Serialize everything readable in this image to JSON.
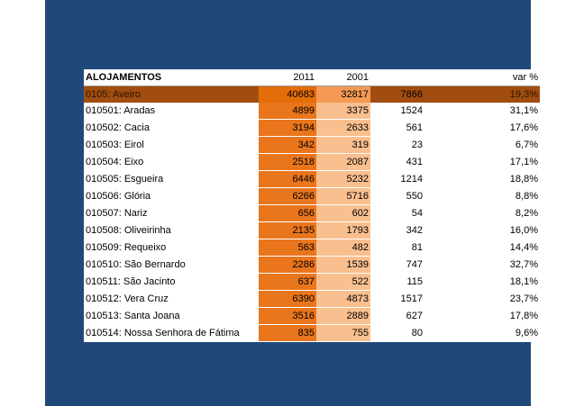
{
  "table": {
    "headers": [
      "ALOJAMENTOS",
      "2011",
      "2001",
      "",
      "var %"
    ],
    "total": {
      "name": "0105: Aveiro",
      "y2011": "40683",
      "y2001": "32817",
      "diff": "7866",
      "var": "19,3%"
    },
    "rows": [
      {
        "name": "010501: Aradas",
        "y2011": "4899",
        "y2001": "3375",
        "diff": "1524",
        "var": "31,1%"
      },
      {
        "name": "010502: Cacia",
        "y2011": "3194",
        "y2001": "2633",
        "diff": "561",
        "var": "17,6%"
      },
      {
        "name": "010503: Eirol",
        "y2011": "342",
        "y2001": "319",
        "diff": "23",
        "var": "6,7%"
      },
      {
        "name": "010504: Eixo",
        "y2011": "2518",
        "y2001": "2087",
        "diff": "431",
        "var": "17,1%"
      },
      {
        "name": "010505: Esgueira",
        "y2011": "6446",
        "y2001": "5232",
        "diff": "1214",
        "var": "18,8%"
      },
      {
        "name": "010506: Glória",
        "y2011": "6266",
        "y2001": "5716",
        "diff": "550",
        "var": "8,8%"
      },
      {
        "name": "010507: Nariz",
        "y2011": "656",
        "y2001": "602",
        "diff": "54",
        "var": "8,2%"
      },
      {
        "name": "010508: Oliveirinha",
        "y2011": "2135",
        "y2001": "1793",
        "diff": "342",
        "var": "16,0%"
      },
      {
        "name": "010509: Requeixo",
        "y2011": "563",
        "y2001": "482",
        "diff": "81",
        "var": "14,4%"
      },
      {
        "name": "010510: São Bernardo",
        "y2011": "2286",
        "y2001": "1539",
        "diff": "747",
        "var": "32,7%"
      },
      {
        "name": "010511: São Jacinto",
        "y2011": "637",
        "y2001": "522",
        "diff": "115",
        "var": "18,1%"
      },
      {
        "name": "010512: Vera Cruz",
        "y2011": "6390",
        "y2001": "4873",
        "diff": "1517",
        "var": "23,7%"
      },
      {
        "name": "010513: Santa Joana",
        "y2011": "3516",
        "y2001": "2889",
        "diff": "627",
        "var": "17,8%"
      },
      {
        "name": "010514: Nossa Senhora de Fátima",
        "y2011": "835",
        "y2001": "755",
        "diff": "80",
        "var": "9,6%"
      }
    ]
  }
}
